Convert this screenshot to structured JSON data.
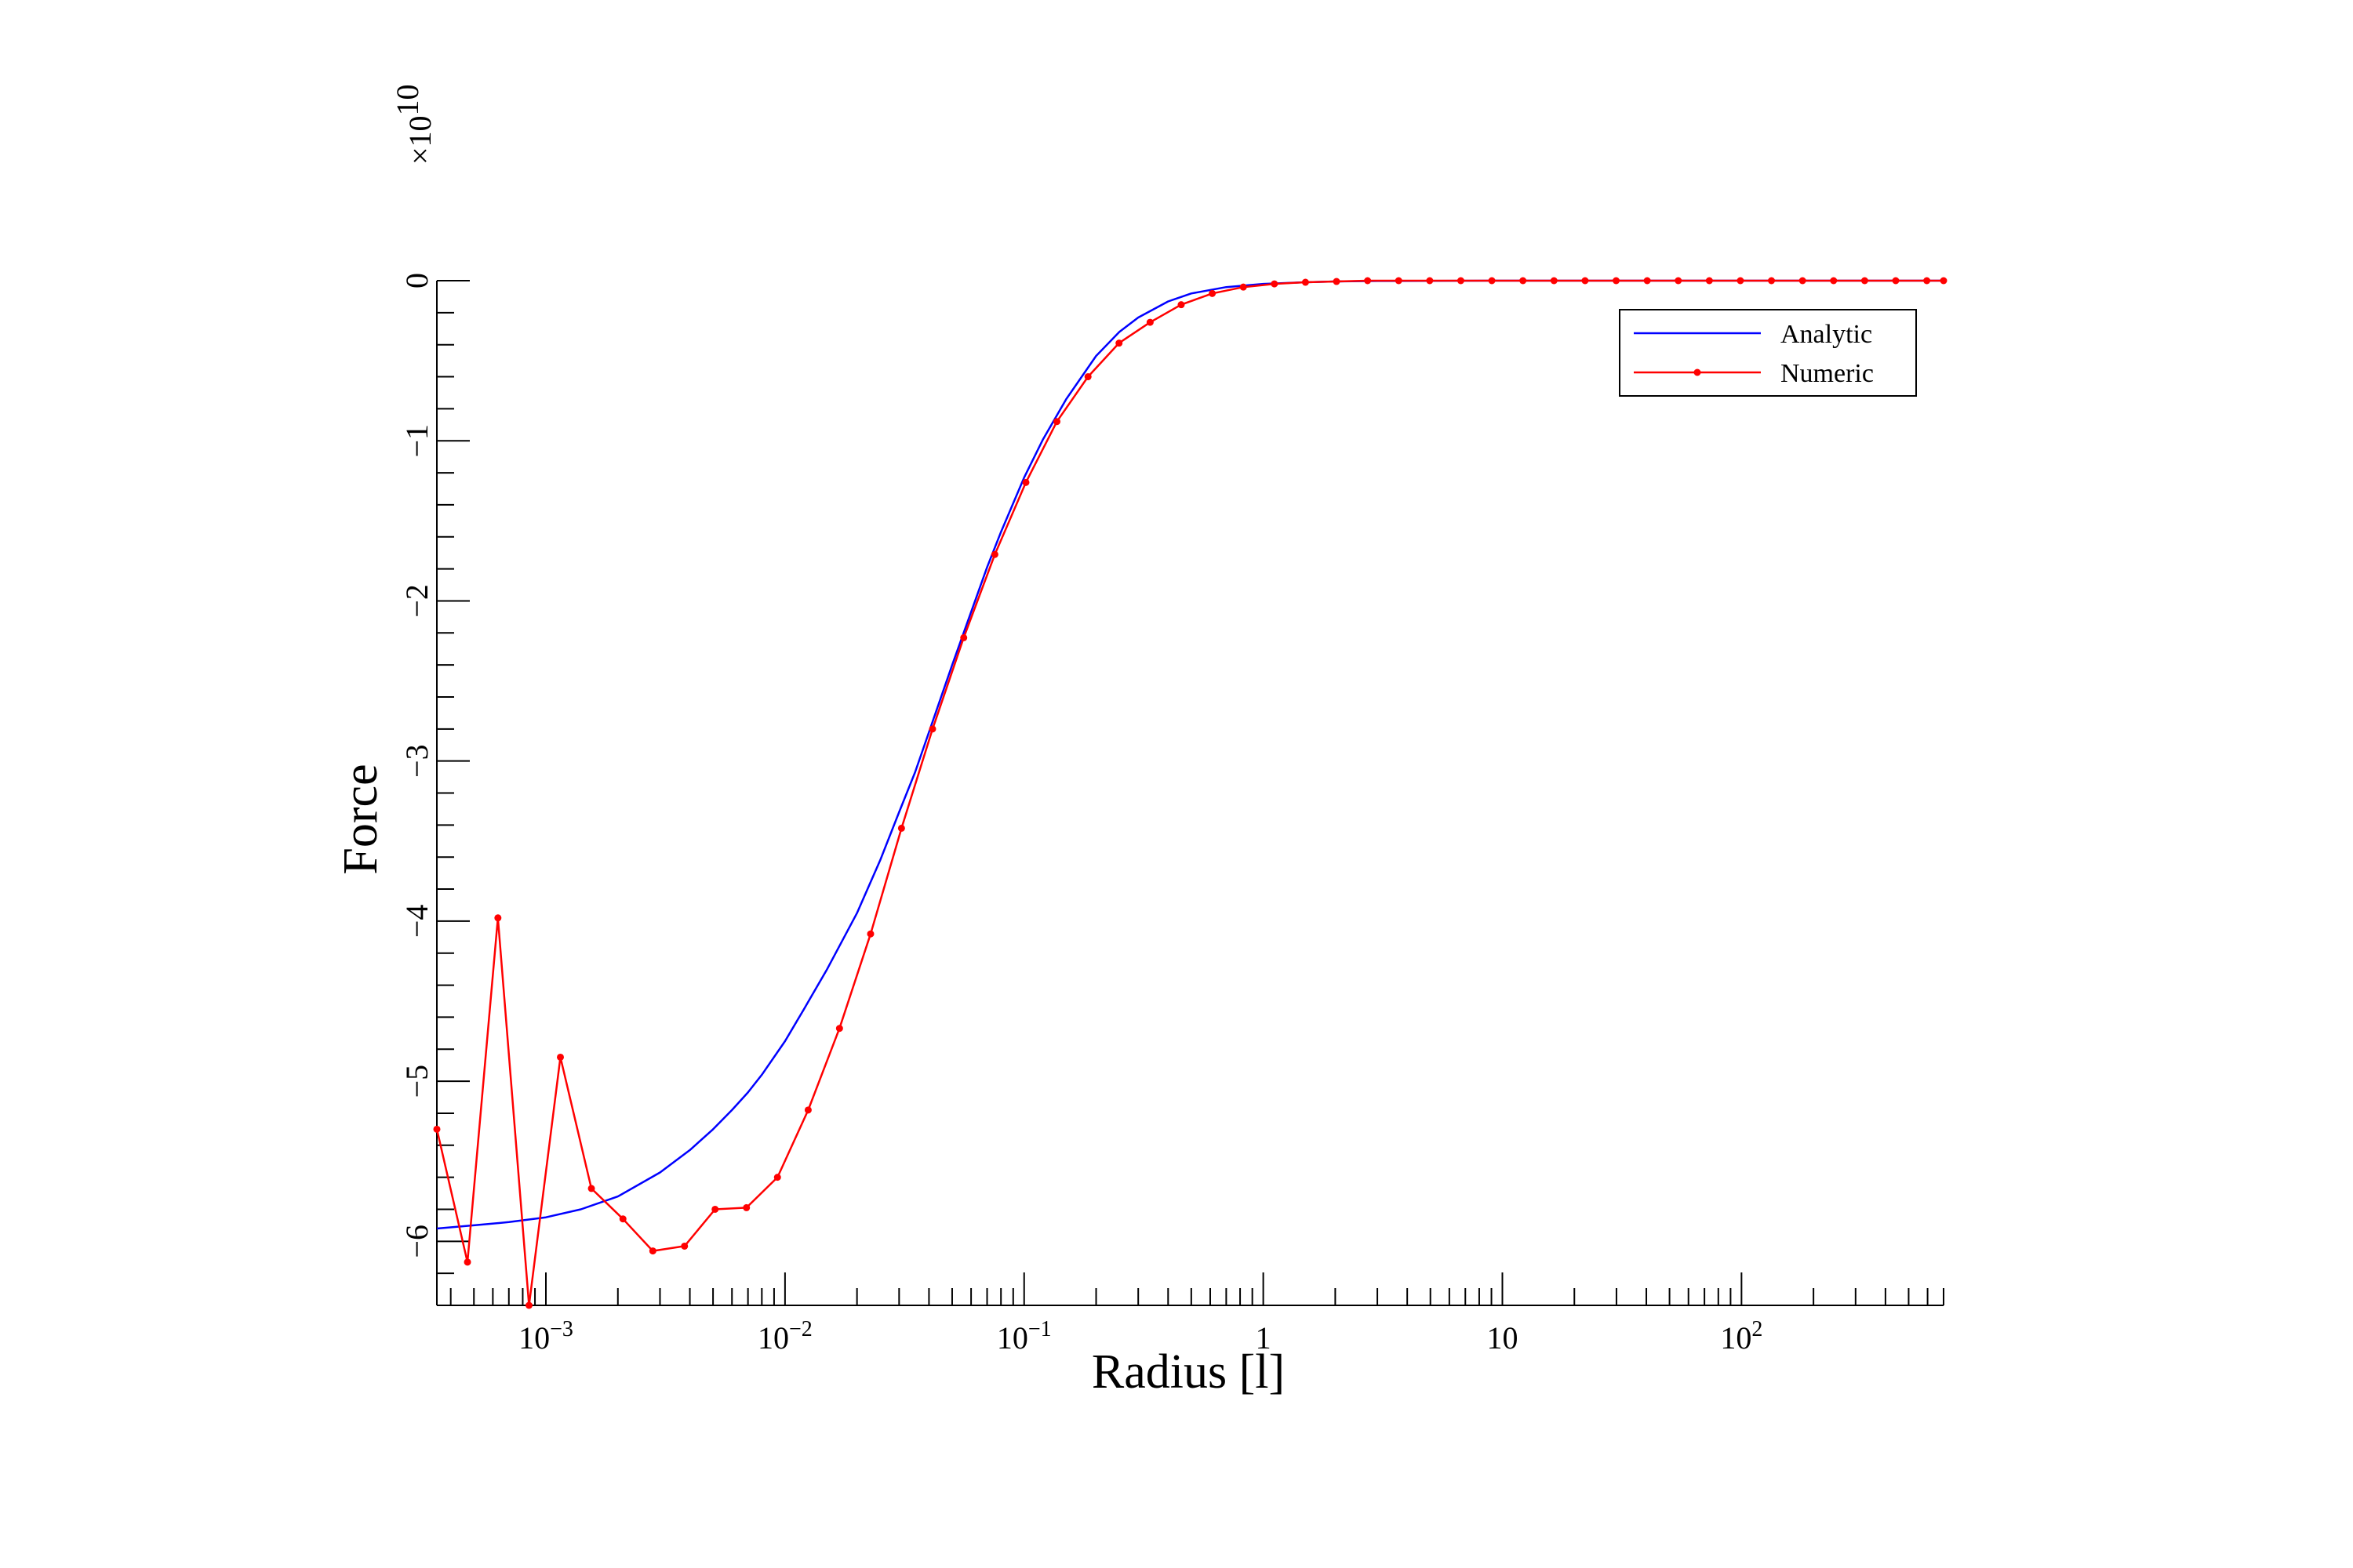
{
  "chart_data": {
    "type": "line",
    "title": "",
    "xlabel": "Radius [l]",
    "ylabel": "Force",
    "y_multiplier_label": "×10",
    "y_multiplier_exponent": "10",
    "x_scale": "log",
    "x_range": [
      0.00035,
      700
    ],
    "y_range": [
      -6.4,
      0
    ],
    "x_tick_labels": [
      {
        "value": 0.001,
        "base": "10",
        "exp": "−3"
      },
      {
        "value": 0.01,
        "base": "10",
        "exp": "−2"
      },
      {
        "value": 0.1,
        "base": "10",
        "exp": "−1"
      },
      {
        "value": 1,
        "base": "1",
        "exp": ""
      },
      {
        "value": 10,
        "base": "10",
        "exp": ""
      },
      {
        "value": 100,
        "base": "10",
        "exp": "2"
      }
    ],
    "y_ticks": [
      0,
      -1,
      -2,
      -3,
      -4,
      -5,
      -6
    ],
    "y_tick_labels": [
      "0",
      "−1",
      "−2",
      "−3",
      "−4",
      "−5",
      "−6"
    ],
    "legend": {
      "position": "top-right",
      "entries": [
        "Analytic",
        "Numeric"
      ]
    },
    "grid": false,
    "series": [
      {
        "name": "Analytic",
        "color": "#0000ff",
        "marker": "none",
        "x": [
          0.00035,
          0.0005,
          0.0007,
          0.001,
          0.0014,
          0.002,
          0.003,
          0.004,
          0.005,
          0.006,
          0.007,
          0.008,
          0.01,
          0.012,
          0.015,
          0.02,
          0.025,
          0.03,
          0.035,
          0.04,
          0.05,
          0.06,
          0.07,
          0.08,
          0.1,
          0.12,
          0.15,
          0.2,
          0.25,
          0.3,
          0.4,
          0.5,
          0.7,
          1,
          1.5,
          2,
          3,
          5,
          10,
          20,
          50,
          100,
          300,
          700
        ],
        "y": [
          -5.92,
          -5.9,
          -5.88,
          -5.85,
          -5.8,
          -5.72,
          -5.57,
          -5.43,
          -5.3,
          -5.18,
          -5.07,
          -4.96,
          -4.75,
          -4.55,
          -4.3,
          -3.95,
          -3.62,
          -3.32,
          -3.07,
          -2.82,
          -2.4,
          -2.07,
          -1.79,
          -1.57,
          -1.23,
          -0.99,
          -0.74,
          -0.47,
          -0.32,
          -0.23,
          -0.13,
          -0.08,
          -0.04,
          -0.02,
          -0.01,
          -0.005,
          -0.002,
          -0.001,
          0,
          0,
          0,
          0,
          0,
          0
        ]
      },
      {
        "name": "Numeric",
        "color": "#ff0000",
        "marker": "dot",
        "x": [
          0.00035,
          0.00047,
          0.00063,
          0.00085,
          0.00115,
          0.00155,
          0.0021,
          0.0028,
          0.0038,
          0.0051,
          0.0069,
          0.0093,
          0.0125,
          0.0169,
          0.0228,
          0.0307,
          0.0414,
          0.0559,
          0.0754,
          0.1017,
          0.1371,
          0.185,
          0.2494,
          0.3364,
          0.4537,
          0.6119,
          0.8253,
          1.1131,
          1.5013,
          2.0248,
          2.7309,
          3.6833,
          4.9678,
          6.7002,
          9.0367,
          12.188,
          16.438,
          22.171,
          29.903,
          40.331,
          54.395,
          73.364,
          98.948,
          133.45,
          179.99,
          242.76,
          327.42,
          441.6,
          595.6,
          700
        ],
        "y": [
          -5.3,
          -6.13,
          -3.98,
          -6.4,
          -4.85,
          -5.67,
          -5.86,
          -6.06,
          -6.03,
          -5.8,
          -5.79,
          -5.6,
          -5.18,
          -4.67,
          -4.08,
          -3.42,
          -2.8,
          -2.23,
          -1.71,
          -1.26,
          -0.88,
          -0.6,
          -0.39,
          -0.26,
          -0.15,
          -0.08,
          -0.04,
          -0.02,
          -0.01,
          -0.005,
          0,
          0,
          0,
          0,
          0,
          0,
          0,
          0,
          0,
          0,
          0,
          0,
          0,
          0,
          0,
          0,
          0,
          0,
          0,
          0
        ]
      }
    ]
  }
}
